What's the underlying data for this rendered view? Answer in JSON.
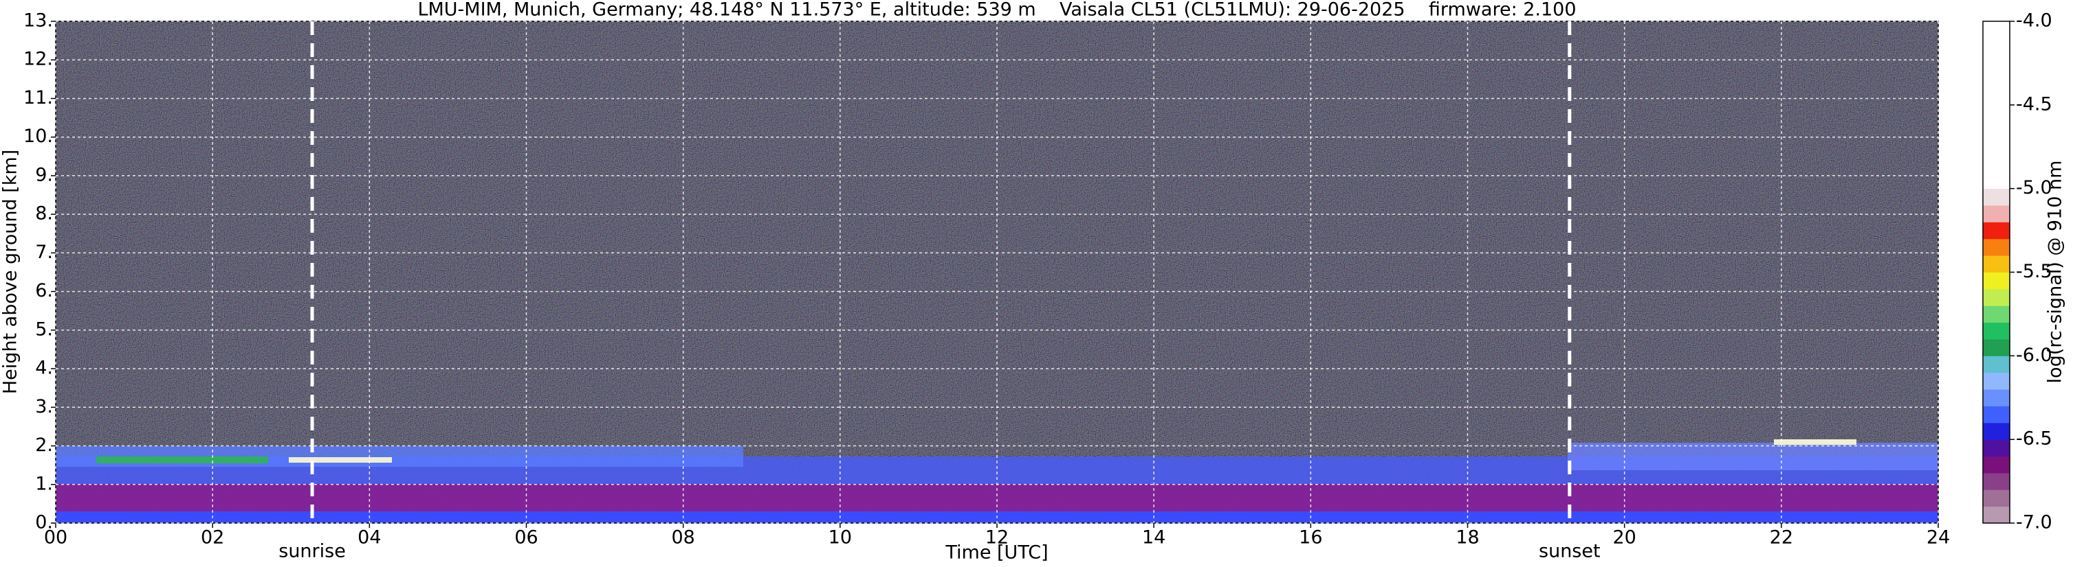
{
  "chart_data": {
    "type": "heatmap",
    "title": "LMU-MIM, Munich, Germany; 48.148° N 11.573° E, altitude: 539 m    Vaisala CL51 (CL51LMU): 29-06-2025    firmware: 2.100",
    "x_label": "Time [UTC]",
    "y_label": "Height above ground [km]",
    "xlim": [
      0,
      24
    ],
    "xticks": [
      {
        "value": 0,
        "label": "00"
      },
      {
        "value": 2,
        "label": "02"
      },
      {
        "value": 4,
        "label": "04"
      },
      {
        "value": 6,
        "label": "06"
      },
      {
        "value": 8,
        "label": "08"
      },
      {
        "value": 10,
        "label": "10"
      },
      {
        "value": 12,
        "label": "12"
      },
      {
        "value": 14,
        "label": "14"
      },
      {
        "value": 16,
        "label": "16"
      },
      {
        "value": 18,
        "label": "18"
      },
      {
        "value": 20,
        "label": "20"
      },
      {
        "value": 22,
        "label": "22"
      },
      {
        "value": 24,
        "label": "24"
      }
    ],
    "ylim": [
      0,
      13
    ],
    "yticks": [
      {
        "value": 0,
        "label": "0."
      },
      {
        "value": 1,
        "label": "1."
      },
      {
        "value": 2,
        "label": "2."
      },
      {
        "value": 3,
        "label": "3."
      },
      {
        "value": 4,
        "label": "4."
      },
      {
        "value": 5,
        "label": "5."
      },
      {
        "value": 6,
        "label": "6."
      },
      {
        "value": 7,
        "label": "7."
      },
      {
        "value": 8,
        "label": "8."
      },
      {
        "value": 9,
        "label": "9."
      },
      {
        "value": 10,
        "label": "10."
      },
      {
        "value": 11,
        "label": "11."
      },
      {
        "value": 12,
        "label": "12."
      },
      {
        "value": 13,
        "label": "13."
      }
    ],
    "grid": true,
    "annotations": [
      {
        "text": "sunrise",
        "x": 3.27
      },
      {
        "text": "sunset",
        "x": 19.3
      }
    ],
    "colorbar": {
      "label": "log(rc-signal) @ 910 nm",
      "lim": [
        -7,
        -4
      ],
      "ticks": [
        {
          "value": -7,
          "label": "-7.0"
        },
        {
          "value": -6.5,
          "label": "-6.5"
        },
        {
          "value": -6,
          "label": "-6.0"
        },
        {
          "value": -5.5,
          "label": "-5.5"
        },
        {
          "value": -5,
          "label": "-5.0"
        },
        {
          "value": -4.5,
          "label": "-4.5"
        },
        {
          "value": -4,
          "label": "-4.0"
        }
      ],
      "colors": [
        "#b89ab0",
        "#a07098",
        "#8a4088",
        "#7a107a",
        "#5010a0",
        "#2020e0",
        "#4060ff",
        "#6a90ff",
        "#90b8ff",
        "#60c0d0",
        "#20a050",
        "#20c060",
        "#70d870",
        "#c0ee50",
        "#f0f020",
        "#f8c010",
        "#f88010",
        "#f02010",
        "#f0b0b0",
        "#eedfe0",
        "#ffffff",
        "#ffffff",
        "#ffffff",
        "#ffffff",
        "#ffffff",
        "#ffffff",
        "#ffffff",
        "#ffffff",
        "#ffffff",
        "#ffffff"
      ]
    }
  }
}
